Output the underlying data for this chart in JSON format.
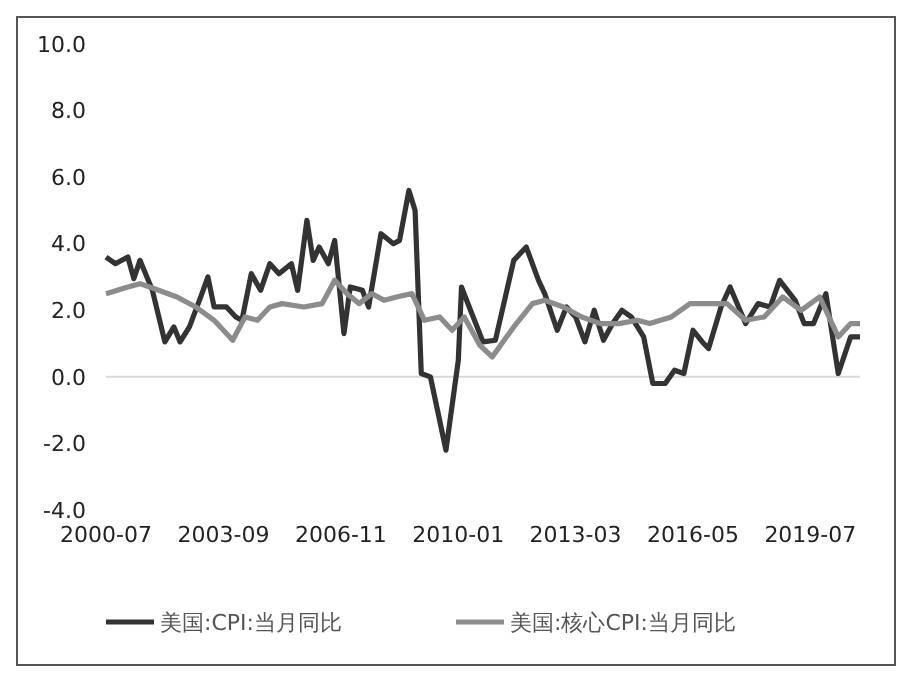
{
  "chart_data": {
    "type": "line",
    "legend": "bottom",
    "grid": false,
    "ref_lines": [
      {
        "axis": "y",
        "value": 0,
        "color": "#d9d9d9"
      }
    ],
    "xlim": [
      "2000-07",
      "2020-11"
    ],
    "xticks": [
      "2000-07",
      "2003-09",
      "2006-11",
      "2010-01",
      "2013-03",
      "2016-05",
      "2019-07"
    ],
    "ylim": [
      -4,
      10
    ],
    "yticks": [
      {
        "value": -4,
        "label": "-4.0"
      },
      {
        "value": -2,
        "label": "-2.0"
      },
      {
        "value": 0,
        "label": "0.0"
      },
      {
        "value": 2,
        "label": "2.0"
      },
      {
        "value": 4,
        "label": "4.0"
      },
      {
        "value": 6,
        "label": "6.0"
      },
      {
        "value": 8,
        "label": "8.0"
      },
      {
        "value": 10,
        "label": "10.0"
      }
    ],
    "series": [
      {
        "name": "美国:CPI:当月同比",
        "color": "#333333",
        "x": [
          "2000-07",
          "2000-10",
          "2001-02",
          "2001-04",
          "2001-06",
          "2001-10",
          "2002-02",
          "2002-05",
          "2002-07",
          "2002-10",
          "2003-02",
          "2003-04",
          "2003-06",
          "2003-10",
          "2004-01",
          "2004-03",
          "2004-06",
          "2004-09",
          "2004-12",
          "2005-03",
          "2005-07",
          "2005-09",
          "2005-12",
          "2006-02",
          "2006-04",
          "2006-07",
          "2006-09",
          "2006-12",
          "2007-02",
          "2007-06",
          "2007-08",
          "2007-12",
          "2008-04",
          "2008-06",
          "2008-09",
          "2008-11",
          "2009-01",
          "2009-04",
          "2009-09",
          "2010-01",
          "2010-02",
          "2010-05",
          "2010-09",
          "2011-01",
          "2011-07",
          "2011-11",
          "2012-03",
          "2012-05",
          "2012-09",
          "2012-12",
          "2013-03",
          "2013-06",
          "2013-09",
          "2013-12",
          "2014-03",
          "2014-06",
          "2014-09",
          "2015-01",
          "2015-04",
          "2015-08",
          "2015-11",
          "2016-02",
          "2016-05",
          "2016-08",
          "2016-10",
          "2017-02",
          "2017-05",
          "2017-10",
          "2018-02",
          "2018-06",
          "2018-09",
          "2019-02",
          "2019-05",
          "2019-08",
          "2019-12",
          "2020-04",
          "2020-08",
          "2020-11"
        ],
        "values": [
          3.6,
          3.4,
          3.6,
          2.95,
          3.5,
          2.6,
          1.05,
          1.5,
          1.05,
          1.5,
          2.5,
          3.0,
          2.1,
          2.1,
          1.8,
          1.7,
          3.1,
          2.6,
          3.4,
          3.1,
          3.4,
          2.6,
          4.7,
          3.5,
          3.9,
          3.4,
          4.1,
          1.3,
          2.7,
          2.6,
          2.1,
          4.3,
          4.0,
          4.1,
          5.6,
          5.0,
          0.1,
          0.0,
          -2.2,
          0.5,
          2.7,
          2.0,
          1.05,
          1.1,
          3.5,
          3.9,
          2.9,
          2.5,
          1.4,
          2.1,
          1.8,
          1.05,
          2.0,
          1.1,
          1.6,
          2.0,
          1.8,
          1.2,
          -0.2,
          -0.2,
          0.2,
          0.1,
          1.4,
          1.05,
          0.85,
          2.1,
          2.7,
          1.6,
          2.2,
          2.1,
          2.9,
          2.3,
          1.6,
          1.6,
          2.5,
          0.1,
          1.2,
          1.2
        ]
      },
      {
        "name": "美国:核心CPI:当月同比",
        "color": "#8c8c8c",
        "x": [
          "2000-07",
          "2001-02",
          "2001-06",
          "2001-12",
          "2002-06",
          "2002-12",
          "2003-06",
          "2003-12",
          "2004-04",
          "2004-08",
          "2004-12",
          "2005-04",
          "2005-11",
          "2006-05",
          "2006-09",
          "2007-01",
          "2007-05",
          "2007-09",
          "2008-01",
          "2008-05",
          "2008-10",
          "2009-02",
          "2009-07",
          "2009-11",
          "2010-03",
          "2010-08",
          "2010-12",
          "2011-07",
          "2012-01",
          "2012-05",
          "2012-11",
          "2013-05",
          "2013-11",
          "2014-05",
          "2014-11",
          "2015-03",
          "2015-10",
          "2016-04",
          "2016-10",
          "2017-04",
          "2017-10",
          "2018-04",
          "2018-10",
          "2019-04",
          "2019-10",
          "2020-04",
          "2020-08",
          "2020-11"
        ],
        "values": [
          2.5,
          2.7,
          2.8,
          2.6,
          2.4,
          2.1,
          1.7,
          1.1,
          1.8,
          1.7,
          2.1,
          2.2,
          2.1,
          2.2,
          2.9,
          2.5,
          2.2,
          2.5,
          2.3,
          2.4,
          2.5,
          1.7,
          1.8,
          1.4,
          1.8,
          0.95,
          0.6,
          1.5,
          2.2,
          2.3,
          2.1,
          1.8,
          1.6,
          1.6,
          1.7,
          1.6,
          1.8,
          2.2,
          2.2,
          2.2,
          1.7,
          1.8,
          2.4,
          2.0,
          2.4,
          1.2,
          1.6,
          1.6
        ]
      }
    ]
  }
}
